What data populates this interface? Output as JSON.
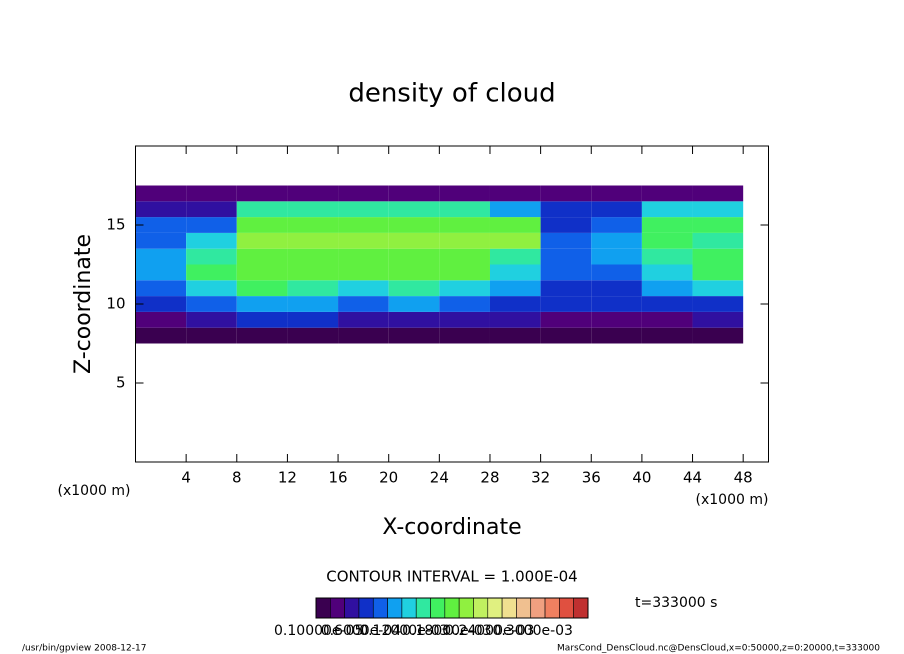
{
  "chart_data": {
    "type": "heatmap",
    "title": "density of cloud",
    "x_label": "X-coordinate",
    "y_label": "Z-coordinate",
    "x_unit": "(x1000 m)",
    "y_unit": "(x1000 m)",
    "xlim": [
      0,
      50
    ],
    "ylim": [
      0,
      20
    ],
    "xticks": [
      4,
      8,
      12,
      16,
      20,
      24,
      28,
      32,
      36,
      40,
      44,
      48
    ],
    "yticks": [
      5,
      10,
      15
    ],
    "x": [
      2,
      6,
      10,
      14,
      18,
      22,
      26,
      30,
      34,
      38,
      42,
      46
    ],
    "z": [
      8,
      9,
      10,
      11,
      12,
      13,
      14,
      15,
      16,
      17
    ],
    "values": [
      [
        1e-05,
        1e-05,
        1e-05,
        1e-05,
        1e-05,
        1e-05,
        1e-05,
        1e-05,
        1e-05,
        1e-05,
        1e-05,
        1e-05
      ],
      [
        3e-05,
        5e-05,
        6e-05,
        6e-05,
        5e-05,
        5e-05,
        4e-05,
        4e-05,
        3e-05,
        3e-05,
        3e-05,
        4e-05
      ],
      [
        6e-05,
        9e-05,
        0.0001,
        0.00011,
        9e-05,
        0.0001,
        9e-05,
        7e-05,
        6e-05,
        6e-05,
        6e-05,
        7e-05
      ],
      [
        9e-05,
        0.00013,
        0.00016,
        0.00015,
        0.00013,
        0.00014,
        0.00013,
        0.0001,
        7e-05,
        7e-05,
        0.0001,
        0.00012
      ],
      [
        0.0001,
        0.00016,
        0.00018,
        0.00018,
        0.00018,
        0.00018,
        0.00018,
        0.00012,
        8e-05,
        9e-05,
        0.00012,
        0.00016
      ],
      [
        0.0001,
        0.00015,
        0.00019,
        0.00019,
        0.00019,
        0.00019,
        0.00019,
        0.00014,
        8e-05,
        0.0001,
        0.00015,
        0.00016
      ],
      [
        9e-05,
        0.00012,
        0.0002,
        0.0002,
        0.0002,
        0.0002,
        0.0002,
        0.0002,
        8e-05,
        0.0001,
        0.00017,
        0.00014
      ],
      [
        8e-05,
        8e-05,
        0.00018,
        0.00018,
        0.00018,
        0.00018,
        0.00018,
        0.00018,
        7e-05,
        9e-05,
        0.00016,
        0.00016
      ],
      [
        5e-05,
        5e-05,
        0.00015,
        0.00015,
        0.00015,
        0.00014,
        0.00014,
        0.0001,
        6e-05,
        6e-05,
        0.00013,
        0.00013
      ],
      [
        2e-05,
        2e-05,
        2e-05,
        2e-05,
        2e-05,
        2e-05,
        2e-05,
        2e-05,
        2e-05,
        2e-05,
        2e-05,
        2e-05
      ]
    ],
    "colorscale": [
      {
        "value": 0,
        "color": "#3a0050"
      },
      {
        "value": 2e-05,
        "color": "#50007a"
      },
      {
        "value": 4e-05,
        "color": "#3010a0"
      },
      {
        "value": 6e-05,
        "color": "#1030c8"
      },
      {
        "value": 8e-05,
        "color": "#1060e8"
      },
      {
        "value": 0.0001,
        "color": "#10a0f0"
      },
      {
        "value": 0.00012,
        "color": "#20d0e0"
      },
      {
        "value": 0.00014,
        "color": "#30e8a0"
      },
      {
        "value": 0.00016,
        "color": "#40f060"
      },
      {
        "value": 0.00018,
        "color": "#60f040"
      },
      {
        "value": 0.0002,
        "color": "#90f040"
      },
      {
        "value": 0.00022,
        "color": "#c0f060"
      },
      {
        "value": 0.00024,
        "color": "#e0f080"
      },
      {
        "value": 0.00026,
        "color": "#f0e090"
      },
      {
        "value": 0.00028,
        "color": "#f0c090"
      },
      {
        "value": 0.0003,
        "color": "#f0a080"
      },
      {
        "value": 0.00032,
        "color": "#f08060"
      },
      {
        "value": 0.00034,
        "color": "#e05040"
      },
      {
        "value": 0.00036,
        "color": "#c03030"
      }
    ],
    "colorbar_ticks": [
      {
        "value": 1e-06,
        "label": "0.10000e-05"
      },
      {
        "value": 6e-05,
        "label": "0.6000e-04"
      },
      {
        "value": 0.00012,
        "label": "0.12000e-03"
      },
      {
        "value": 0.00018,
        "label": "0.18000e-03"
      },
      {
        "value": 0.00024,
        "label": "0.24000e-03"
      },
      {
        "value": 0.0003,
        "label": "0.3000e-03"
      }
    ],
    "contour_interval": "CONTOUR INTERVAL = 1.000E-04",
    "time": "t=333000 s",
    "footer_left": "/usr/bin/gpview   2008-12-17",
    "footer_right": "MarsCond_DensCloud.nc@DensCloud,x=0:50000,z=0:20000,t=333000"
  }
}
